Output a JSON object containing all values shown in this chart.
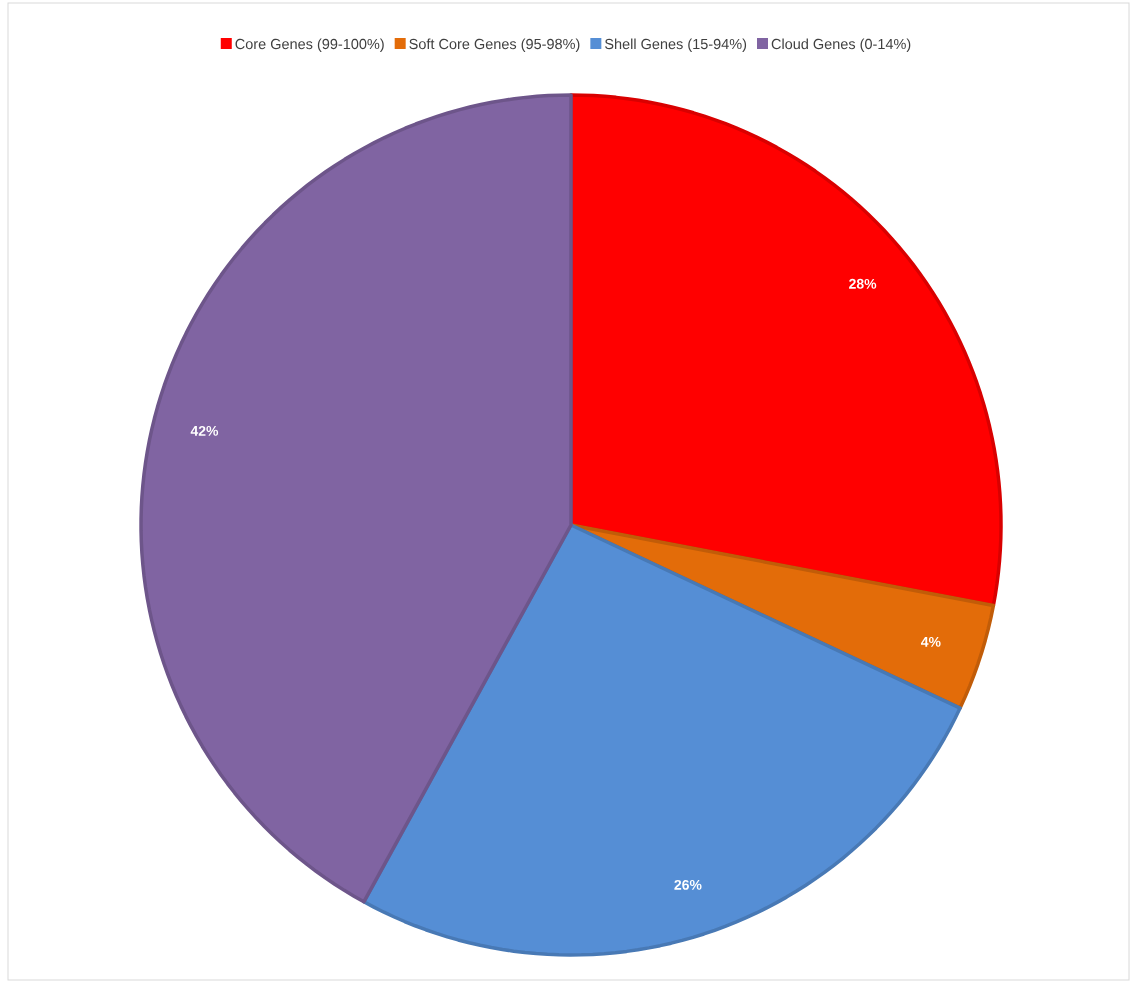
{
  "chart_data": {
    "type": "pie",
    "categories": [
      "Core Genes (99-100%)",
      "Soft Core Genes (95-98%)",
      "Shell Genes (15-94%)",
      "Cloud Genes (0-14%)"
    ],
    "values": [
      28,
      4,
      26,
      42
    ],
    "colors": [
      "#ff0000",
      "#e36c09",
      "#558ed5",
      "#8064a2"
    ],
    "value_labels": [
      "28%",
      "4%",
      "26%",
      "42%"
    ],
    "legend": "top"
  }
}
